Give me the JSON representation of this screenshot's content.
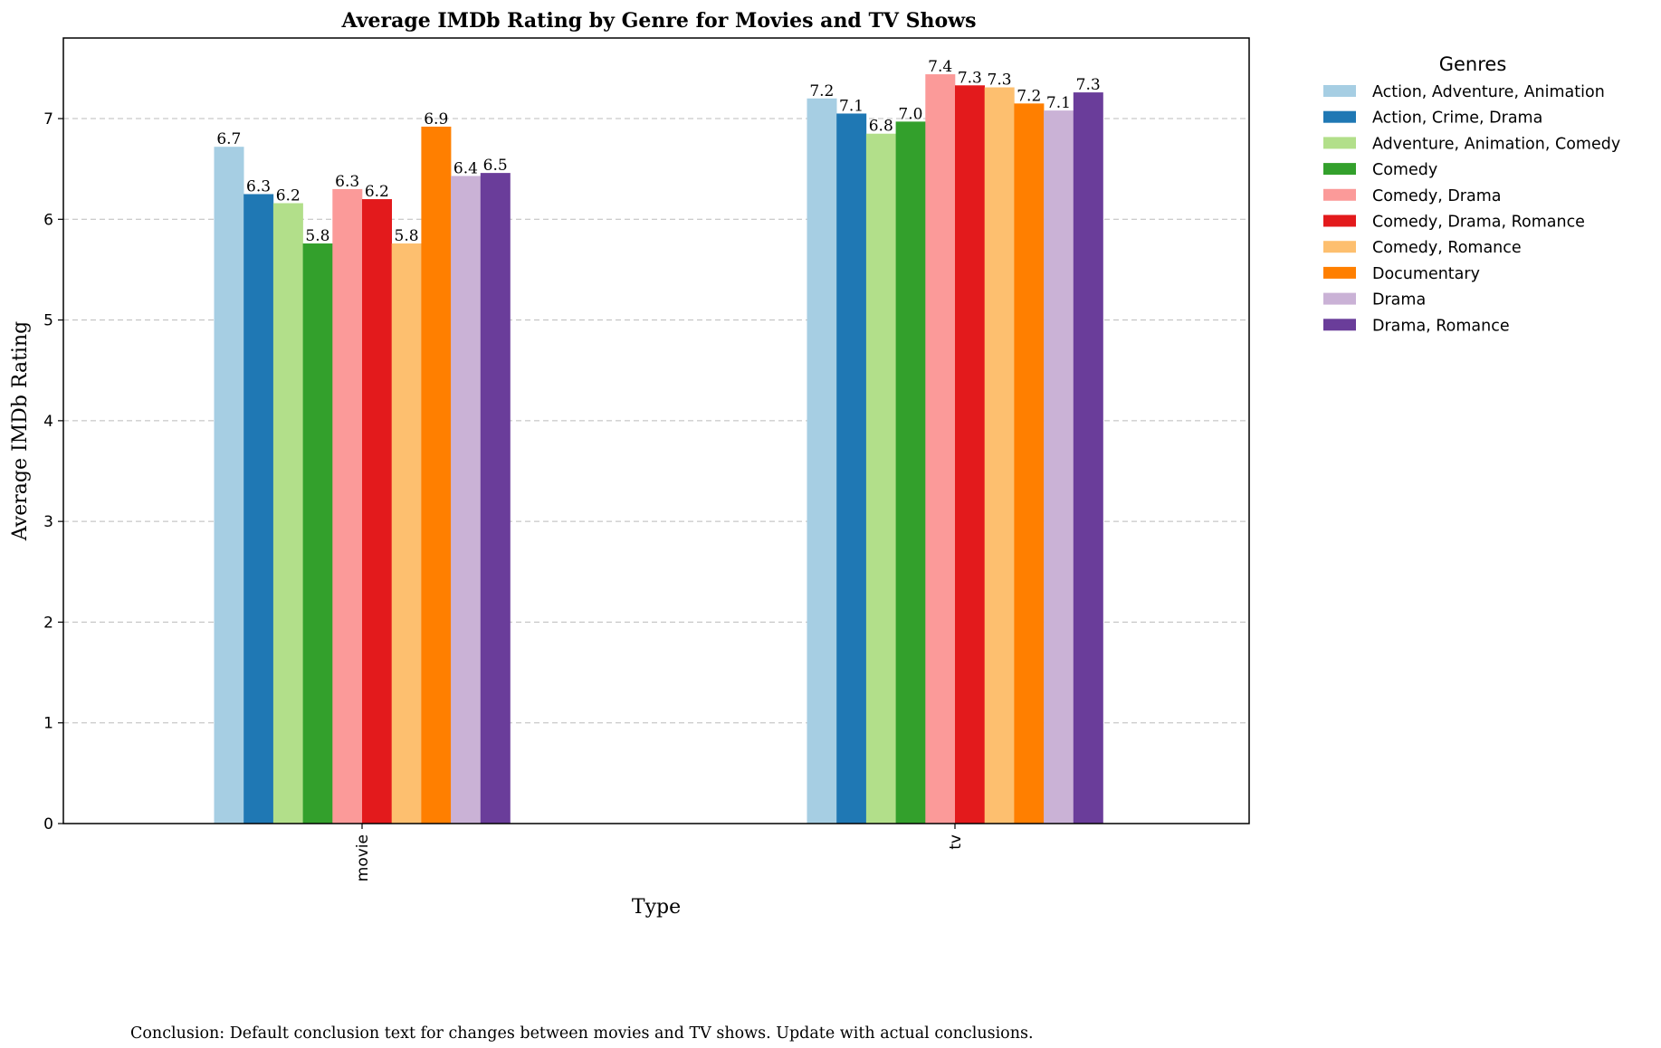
{
  "chart_data": {
    "type": "bar",
    "title": "Average IMDb Rating by Genre for Movies and TV Shows",
    "xlabel": "Type",
    "ylabel": "Average IMDb Rating",
    "categories": [
      "movie",
      "tv"
    ],
    "ylim": [
      0,
      7.8
    ],
    "yticks": [
      0,
      1,
      2,
      3,
      4,
      5,
      6,
      7
    ],
    "grid": "y-dashed",
    "legend": {
      "title": "Genres",
      "placement": "outside-right"
    },
    "series": [
      {
        "name": "Action, Adventure, Animation",
        "color": "#a6cee3",
        "values": [
          6.72,
          7.2
        ],
        "labels": [
          "6.7",
          "7.2"
        ]
      },
      {
        "name": "Action, Crime, Drama",
        "color": "#1f78b4",
        "values": [
          6.25,
          7.05
        ],
        "labels": [
          "6.3",
          "7.1"
        ]
      },
      {
        "name": "Adventure, Animation, Comedy",
        "color": "#b2df8a",
        "values": [
          6.16,
          6.85
        ],
        "labels": [
          "6.2",
          "6.8"
        ]
      },
      {
        "name": "Comedy",
        "color": "#33a02c",
        "values": [
          5.76,
          6.97
        ],
        "labels": [
          "5.8",
          "7.0"
        ]
      },
      {
        "name": "Comedy, Drama",
        "color": "#fb9a99",
        "values": [
          6.3,
          7.44
        ],
        "labels": [
          "6.3",
          "7.4"
        ]
      },
      {
        "name": "Comedy, Drama, Romance",
        "color": "#e31a1c",
        "values": [
          6.2,
          7.33
        ],
        "labels": [
          "6.2",
          "7.3"
        ]
      },
      {
        "name": "Comedy, Romance",
        "color": "#fdbf6f",
        "values": [
          5.76,
          7.31
        ],
        "labels": [
          "5.8",
          "7.3"
        ]
      },
      {
        "name": "Documentary",
        "color": "#ff7f00",
        "values": [
          6.92,
          7.15
        ],
        "labels": [
          "6.9",
          "7.2"
        ]
      },
      {
        "name": "Drama",
        "color": "#cab2d6",
        "values": [
          6.43,
          7.08
        ],
        "labels": [
          "6.4",
          "7.1"
        ]
      },
      {
        "name": "Drama, Romance",
        "color": "#6a3d9a",
        "values": [
          6.46,
          7.26
        ],
        "labels": [
          "6.5",
          "7.3"
        ]
      }
    ]
  },
  "conclusion": "Conclusion: Default conclusion text for changes between movies and TV shows. Update with actual conclusions."
}
